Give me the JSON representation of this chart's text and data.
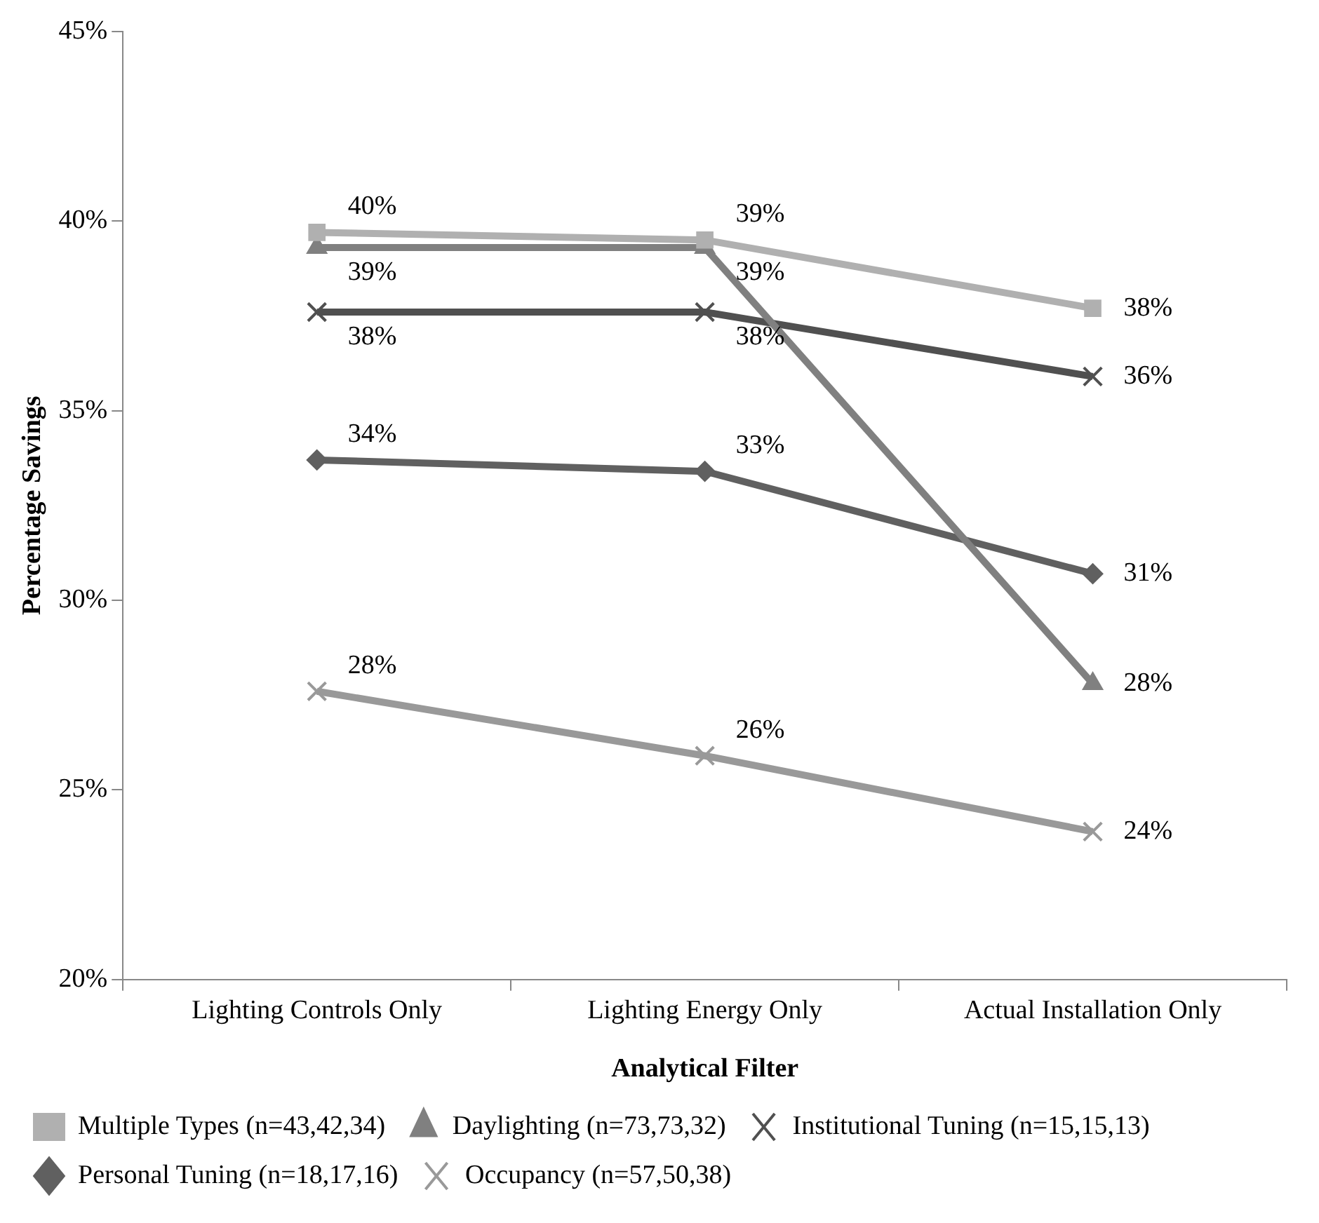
{
  "chart_data": {
    "type": "line",
    "xlabel": "Analytical Filter",
    "ylabel": "Percentage Savings",
    "categories": [
      "Lighting Controls Only",
      "Lighting Energy Only",
      "Actual Installation Only"
    ],
    "series": [
      {
        "name": "Multiple Types (n=43,42,34)",
        "color": "#b0b0b0",
        "marker": "square",
        "values": [
          39.7,
          39.5,
          37.7
        ],
        "value_labels": [
          "40%",
          "39%",
          "38%"
        ]
      },
      {
        "name": "Daylighting (n=73,73,32)",
        "color": "#808080",
        "marker": "triangle",
        "values": [
          39.3,
          39.3,
          27.8
        ],
        "value_labels": [
          "39%",
          "39%",
          "28%"
        ]
      },
      {
        "name": "Institutional Tuning (n=15,15,13)",
        "color": "#505050",
        "marker": "cross",
        "values": [
          37.6,
          37.6,
          35.9
        ],
        "value_labels": [
          "38%",
          "38%",
          "36%"
        ]
      },
      {
        "name": "Personal Tuning (n=18,17,16)",
        "color": "#606060",
        "marker": "diamond",
        "values": [
          33.7,
          33.4,
          30.7
        ],
        "value_labels": [
          "34%",
          "33%",
          "31%"
        ]
      },
      {
        "name": "Occupancy (n=57,50,38)",
        "color": "#999999",
        "marker": "cross",
        "values": [
          27.6,
          25.9,
          23.9
        ],
        "value_labels": [
          "28%",
          "26%",
          "24%"
        ]
      }
    ],
    "ylim": [
      20,
      45
    ],
    "yticks": [
      {
        "value": 20,
        "label": "20%"
      },
      {
        "value": 25,
        "label": "25%"
      },
      {
        "value": 30,
        "label": "30%"
      },
      {
        "value": 35,
        "label": "35%"
      },
      {
        "value": 40,
        "label": "40%"
      },
      {
        "value": 45,
        "label": "45%"
      }
    ],
    "grid": false,
    "legend": "bottom",
    "line_style": "solid"
  }
}
